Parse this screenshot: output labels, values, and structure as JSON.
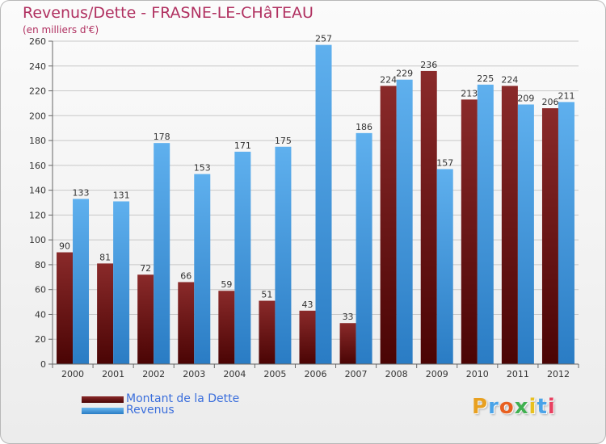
{
  "header": {
    "title": "Revenus/Dette - FRASNE-LE-CHâTEAU",
    "subtitle": "(en milliers d'€)"
  },
  "legend": {
    "items": [
      {
        "label": "Montant de la Dette",
        "color": "#7a1a1a"
      },
      {
        "label": "Revenus",
        "color": "#4aa3e8"
      }
    ]
  },
  "logo": {
    "text": "Proxiti",
    "letter_colors": [
      "#e8a020",
      "#4aa3e8",
      "#e86020",
      "#40b050",
      "#e8c020",
      "#4aa3e8",
      "#e84060"
    ]
  },
  "chart_data": {
    "type": "bar",
    "title": "Revenus/Dette - FRASNE-LE-CHâTEAU",
    "ylabel": "(en milliers d'€)",
    "xlabel": "",
    "ylim": [
      0,
      260
    ],
    "ytick_step": 20,
    "grid": true,
    "legend_position": "bottom-left",
    "categories": [
      "2000",
      "2001",
      "2002",
      "2003",
      "2004",
      "2005",
      "2006",
      "2007",
      "2008",
      "2009",
      "2010",
      "2011",
      "2012"
    ],
    "series": [
      {
        "name": "Montant de la Dette",
        "color": "#7a1a1a",
        "values": [
          90,
          81,
          72,
          66,
          59,
          51,
          43,
          33,
          224,
          236,
          213,
          224,
          206
        ]
      },
      {
        "name": "Revenus",
        "color": "#4aa3e8",
        "values": [
          133,
          131,
          178,
          153,
          171,
          175,
          257,
          186,
          229,
          157,
          225,
          209,
          211
        ]
      }
    ]
  }
}
